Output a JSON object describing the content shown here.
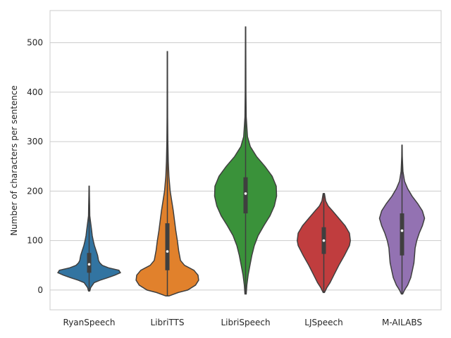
{
  "chart_data": {
    "type": "violin",
    "title": "",
    "xlabel": "",
    "ylabel": "Number of characters per sentence",
    "ylim": [
      -40,
      565
    ],
    "yticks": [
      0,
      100,
      200,
      300,
      400,
      500
    ],
    "grid": "horizontal",
    "categories": [
      "RyanSpeech",
      "LibriTTS",
      "LibriSpeech",
      "LJSpeech",
      "M-AILABS"
    ],
    "colors": [
      "#3274a1",
      "#e1812c",
      "#3a923a",
      "#c03d3e",
      "#9372b2"
    ],
    "series": [
      {
        "category": "RyanSpeech",
        "min": -2,
        "max": 210,
        "q1": 35,
        "median": 52,
        "q3": 75,
        "density": [
          [
            -2,
            0.02
          ],
          [
            5,
            0.05
          ],
          [
            15,
            0.16
          ],
          [
            20,
            0.35
          ],
          [
            25,
            0.6
          ],
          [
            30,
            0.82
          ],
          [
            35,
            1.0
          ],
          [
            40,
            0.95
          ],
          [
            45,
            0.62
          ],
          [
            50,
            0.42
          ],
          [
            55,
            0.34
          ],
          [
            60,
            0.3
          ],
          [
            70,
            0.27
          ],
          [
            80,
            0.22
          ],
          [
            90,
            0.17
          ],
          [
            100,
            0.13
          ],
          [
            110,
            0.1
          ],
          [
            120,
            0.08
          ],
          [
            130,
            0.06
          ],
          [
            140,
            0.04
          ],
          [
            150,
            0.02
          ],
          [
            170,
            0.015
          ],
          [
            190,
            0.01
          ],
          [
            210,
            0.005
          ]
        ]
      },
      {
        "category": "LibriTTS",
        "min": -12,
        "max": 482,
        "q1": 40,
        "median": 78,
        "q3": 135,
        "density": [
          [
            -12,
            0.05
          ],
          [
            -5,
            0.35
          ],
          [
            0,
            0.65
          ],
          [
            10,
            0.9
          ],
          [
            20,
            1.0
          ],
          [
            30,
            0.98
          ],
          [
            40,
            0.85
          ],
          [
            50,
            0.55
          ],
          [
            60,
            0.42
          ],
          [
            80,
            0.36
          ],
          [
            100,
            0.32
          ],
          [
            120,
            0.27
          ],
          [
            140,
            0.23
          ],
          [
            160,
            0.19
          ],
          [
            180,
            0.14
          ],
          [
            200,
            0.09
          ],
          [
            230,
            0.05
          ],
          [
            260,
            0.03
          ],
          [
            300,
            0.015
          ],
          [
            350,
            0.008
          ],
          [
            400,
            0.006
          ],
          [
            482,
            0.005
          ]
        ]
      },
      {
        "category": "LibriSpeech",
        "min": -8,
        "max": 532,
        "q1": 155,
        "median": 195,
        "q3": 228,
        "density": [
          [
            -8,
            0.02
          ],
          [
            10,
            0.04
          ],
          [
            30,
            0.08
          ],
          [
            50,
            0.14
          ],
          [
            70,
            0.2
          ],
          [
            90,
            0.28
          ],
          [
            110,
            0.4
          ],
          [
            130,
            0.58
          ],
          [
            150,
            0.78
          ],
          [
            170,
            0.92
          ],
          [
            190,
            0.99
          ],
          [
            210,
            0.98
          ],
          [
            230,
            0.85
          ],
          [
            250,
            0.62
          ],
          [
            270,
            0.35
          ],
          [
            290,
            0.15
          ],
          [
            310,
            0.06
          ],
          [
            350,
            0.02
          ],
          [
            400,
            0.012
          ],
          [
            450,
            0.008
          ],
          [
            532,
            0.005
          ]
        ]
      },
      {
        "category": "LJSpeech",
        "min": -5,
        "max": 195,
        "q1": 73,
        "median": 100,
        "q3": 127,
        "density": [
          [
            -5,
            0.02
          ],
          [
            5,
            0.1
          ],
          [
            15,
            0.2
          ],
          [
            30,
            0.32
          ],
          [
            50,
            0.48
          ],
          [
            70,
            0.66
          ],
          [
            90,
            0.82
          ],
          [
            100,
            0.85
          ],
          [
            115,
            0.82
          ],
          [
            130,
            0.68
          ],
          [
            145,
            0.48
          ],
          [
            160,
            0.28
          ],
          [
            170,
            0.14
          ],
          [
            180,
            0.06
          ],
          [
            195,
            0.02
          ]
        ]
      },
      {
        "category": "M-AILABS",
        "min": -8,
        "max": 293,
        "q1": 70,
        "median": 120,
        "q3": 155,
        "density": [
          [
            -8,
            0.02
          ],
          [
            0,
            0.08
          ],
          [
            10,
            0.18
          ],
          [
            25,
            0.28
          ],
          [
            40,
            0.33
          ],
          [
            55,
            0.38
          ],
          [
            70,
            0.4
          ],
          [
            85,
            0.42
          ],
          [
            100,
            0.47
          ],
          [
            115,
            0.55
          ],
          [
            130,
            0.65
          ],
          [
            145,
            0.72
          ],
          [
            160,
            0.65
          ],
          [
            175,
            0.5
          ],
          [
            190,
            0.32
          ],
          [
            205,
            0.18
          ],
          [
            220,
            0.08
          ],
          [
            240,
            0.03
          ],
          [
            270,
            0.01
          ],
          [
            293,
            0.005
          ]
        ]
      }
    ]
  }
}
